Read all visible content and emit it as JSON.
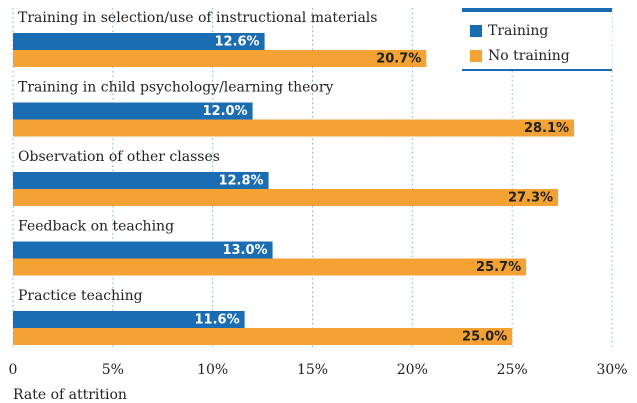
{
  "chart_data": {
    "type": "bar",
    "orientation": "horizontal",
    "categories": [
      "Training in selection/use of instructional materials",
      "Training in child psychology/learning theory",
      "Observation of other classes",
      "Feedback on teaching",
      "Practice teaching"
    ],
    "series": [
      {
        "name": "Training",
        "color": "#1b6db3",
        "values": [
          12.6,
          12.0,
          12.8,
          13.0,
          11.6
        ],
        "value_labels": [
          "12.6%",
          "12.0%",
          "12.8%",
          "13.0%",
          "11.6%"
        ]
      },
      {
        "name": "No training",
        "color": "#f5a234",
        "values": [
          20.7,
          28.1,
          27.3,
          25.7,
          25.0
        ],
        "value_labels": [
          "20.7%",
          "28.1%",
          "27.3%",
          "25.7%",
          "25.0%"
        ]
      }
    ],
    "xlim": [
      0,
      30
    ],
    "xticks": [
      0,
      {
        "value": 5,
        "label": "5%"
      },
      {
        "value": 10,
        "label": "10%"
      },
      {
        "value": 15,
        "label": "15%"
      },
      {
        "value": 20,
        "label": "20%"
      },
      {
        "value": 25,
        "label": "25%"
      },
      {
        "value": 30,
        "label": "30%"
      }
    ],
    "xlabel": "Rate of attrition",
    "grid": true,
    "legend": "upper right"
  }
}
